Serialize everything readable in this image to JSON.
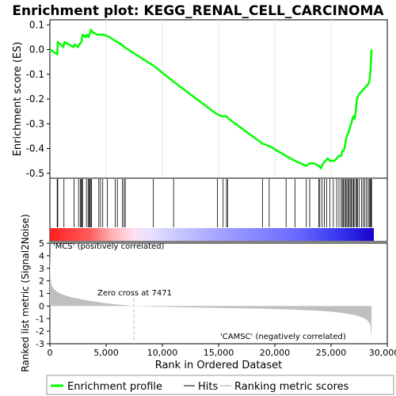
{
  "title": "Enrichment plot: KEGG_RENAL_CELL_CARCINOMA",
  "colors": {
    "es_line": "#00ff00",
    "hit_line": "#000000",
    "metric_fill": "#bfbfbf",
    "pos_label": "#ff0000",
    "neg_label": "#0000ff",
    "zero_cross_line": "#bbbbbb"
  },
  "chart_data": [
    {
      "type": "line",
      "name": "enrichment-profile",
      "ylabel": "Enrichment score (ES)",
      "ylim": [
        -0.52,
        0.12
      ],
      "yticks": [
        0.1,
        0.0,
        -0.1,
        -0.2,
        -0.3,
        -0.4,
        -0.5
      ],
      "ytick_labels": [
        "0.1",
        "0.0",
        "-0.1",
        "-0.2",
        "-0.3",
        "-0.4",
        "-0.5"
      ],
      "xlim": [
        0,
        30000
      ],
      "grid": "vertical",
      "series": [
        {
          "name": "Enrichment profile",
          "x": [
            0,
            650,
            700,
            1200,
            1300,
            2100,
            2200,
            2500,
            2600,
            2800,
            2900,
            3200,
            3300,
            3450,
            3500,
            3600,
            3650,
            3800,
            4200,
            4400,
            4800,
            5300,
            5800,
            6000,
            6400,
            6600,
            9200,
            11000,
            14800,
            15300,
            15700,
            15900,
            18900,
            19500,
            21000,
            21800,
            22800,
            23100,
            23500,
            23900,
            24100,
            24300,
            24500,
            24700,
            24900,
            25100,
            25300,
            25500,
            25700,
            25900,
            26000,
            26100,
            26200,
            26300,
            26400,
            26500,
            26600,
            26700,
            26800,
            26900,
            27000,
            27100,
            27200,
            27300,
            27400,
            27500,
            27700,
            27900,
            28100,
            28300,
            28400,
            28500,
            28550,
            28600
          ],
          "y": [
            0.0,
            -0.02,
            0.03,
            0.01,
            0.03,
            0.01,
            0.02,
            0.01,
            0.02,
            0.03,
            0.06,
            0.05,
            0.06,
            0.05,
            0.06,
            0.07,
            0.08,
            0.07,
            0.06,
            0.06,
            0.06,
            0.05,
            0.035,
            0.03,
            0.02,
            0.01,
            -0.065,
            -0.13,
            -0.26,
            -0.27,
            -0.27,
            -0.28,
            -0.38,
            -0.39,
            -0.43,
            -0.45,
            -0.47,
            -0.46,
            -0.46,
            -0.47,
            -0.48,
            -0.46,
            -0.45,
            -0.44,
            -0.45,
            -0.45,
            -0.45,
            -0.44,
            -0.43,
            -0.43,
            -0.41,
            -0.41,
            -0.4,
            -0.37,
            -0.35,
            -0.34,
            -0.33,
            -0.31,
            -0.3,
            -0.28,
            -0.27,
            -0.28,
            -0.25,
            -0.2,
            -0.19,
            -0.18,
            -0.17,
            -0.16,
            -0.15,
            -0.14,
            -0.13,
            -0.09,
            -0.04,
            0.0
          ]
        }
      ]
    },
    {
      "type": "scatter",
      "name": "hits",
      "series": [
        {
          "name": "Hits",
          "x": [
            650,
            700,
            1250,
            2150,
            2550,
            2700,
            2800,
            2850,
            2900,
            3250,
            3400,
            3500,
            3550,
            3650,
            3700,
            4350,
            4500,
            4700,
            5100,
            5800,
            6000,
            6450,
            6600,
            6700,
            9200,
            11000,
            14900,
            15400,
            15700,
            15800,
            18900,
            19500,
            21000,
            21800,
            22800,
            23100,
            23900,
            24000,
            24200,
            24400,
            24600,
            24900,
            25200,
            25500,
            25700,
            25900,
            26000,
            26100,
            26200,
            26300,
            26400,
            26500,
            26600,
            26700,
            26800,
            26900,
            27000,
            27050,
            27200,
            27300,
            27350,
            27500,
            27700,
            27850,
            28000,
            28150,
            28300,
            28400,
            28500,
            28550,
            28600
          ]
        }
      ]
    },
    {
      "type": "area",
      "name": "ranked-metric",
      "xlabel": "Rank in Ordered Dataset",
      "ylabel": "Ranked list metric (Signal2Noise)",
      "xlim": [
        0,
        30000
      ],
      "ylim": [
        -3,
        5
      ],
      "xticks": [
        0,
        5000,
        10000,
        15000,
        20000,
        25000,
        30000
      ],
      "xtick_labels": [
        "0",
        "5,000",
        "10,000",
        "15,000",
        "20,000",
        "25,000",
        "30,000"
      ],
      "yticks": [
        5,
        4,
        3,
        2,
        1,
        0,
        -1,
        -2,
        -3
      ],
      "ytick_labels": [
        "5",
        "4",
        "3",
        "2",
        "1",
        "0",
        "-1",
        "-2",
        "-3"
      ],
      "zero_cross": 7471,
      "series": [
        {
          "name": "Ranking metric scores",
          "x": [
            0,
            50,
            150,
            300,
            600,
            1000,
            1500,
            2000,
            3000,
            4000,
            5000,
            6000,
            7000,
            7471,
            8000,
            10000,
            12000,
            15000,
            18000,
            20000,
            22000,
            24000,
            25000,
            26000,
            27000,
            27500,
            28000,
            28300,
            28500,
            28550,
            28600
          ],
          "y": [
            4.5,
            2.3,
            1.7,
            1.4,
            1.15,
            0.95,
            0.8,
            0.68,
            0.5,
            0.35,
            0.22,
            0.12,
            0.04,
            0.0,
            -0.02,
            -0.06,
            -0.1,
            -0.15,
            -0.2,
            -0.24,
            -0.3,
            -0.38,
            -0.45,
            -0.55,
            -0.7,
            -0.82,
            -1.0,
            -1.2,
            -1.5,
            -2.0,
            -2.7
          ]
        }
      ]
    }
  ],
  "labels": {
    "pos_corr": "'MCS' (positively correlated)",
    "neg_corr": "'CAMSC' (negatively correlated)",
    "zero_cross": "Zero cross at 7471"
  },
  "legend": {
    "placement": "bottom",
    "items": [
      "Enrichment profile",
      "Hits",
      "Ranking metric scores"
    ]
  }
}
